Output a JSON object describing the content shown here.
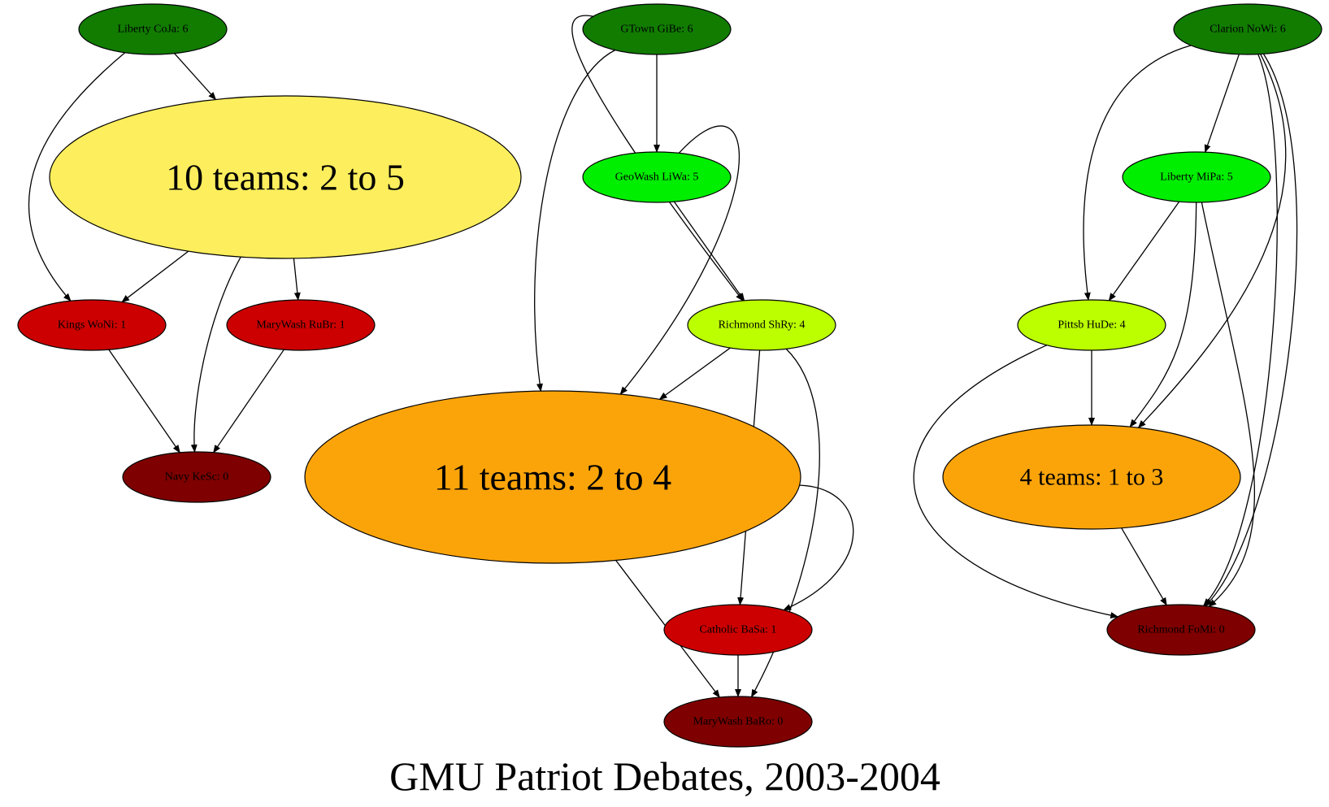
{
  "title": "GMU Patriot Debates, 2003-2004",
  "colors": {
    "dark_green": "#117c00",
    "bright_green": "#00ee00",
    "lime": "#bbff00",
    "yellow": "#fcee5d",
    "orange": "#fba40a",
    "red": "#cc0000",
    "dark_red": "#7e0000"
  },
  "nodes": {
    "liberty_coja": {
      "label": "Liberty CoJa: 6",
      "color": "dark_green"
    },
    "gtown_gibe": {
      "label": "GTown GiBe: 6",
      "color": "dark_green"
    },
    "clarion_nowi": {
      "label": "Clarion NoWi: 6",
      "color": "dark_green"
    },
    "geowash_liwa": {
      "label": "GeoWash LiWa: 5",
      "color": "bright_green"
    },
    "liberty_mipa": {
      "label": "Liberty MiPa: 5",
      "color": "bright_green"
    },
    "group_10": {
      "label": "10 teams: 2 to 5",
      "color": "yellow"
    },
    "kings_woni": {
      "label": "Kings WoNi: 1",
      "color": "red"
    },
    "marywash_rubr": {
      "label": "MaryWash RuBr: 1",
      "color": "red"
    },
    "richmond_shry": {
      "label": "Richmond ShRy: 4",
      "color": "lime"
    },
    "pittsb_hude": {
      "label": "Pittsb HuDe: 4",
      "color": "lime"
    },
    "navy_kesc": {
      "label": "Navy KeSc: 0",
      "color": "dark_red"
    },
    "group_11": {
      "label": "11 teams: 2 to 4",
      "color": "orange"
    },
    "group_4": {
      "label": "4 teams: 1 to 3",
      "color": "orange"
    },
    "catholic_basa": {
      "label": "Catholic BaSa: 1",
      "color": "red"
    },
    "richmond_fomi": {
      "label": "Richmond FoMi: 0",
      "color": "dark_red"
    },
    "marywash_baro": {
      "label": "MaryWash BaRo: 0",
      "color": "dark_red"
    }
  },
  "edges": [
    [
      "liberty_coja",
      "group_10"
    ],
    [
      "liberty_coja",
      "kings_woni"
    ],
    [
      "group_10",
      "kings_woni"
    ],
    [
      "group_10",
      "marywash_rubr"
    ],
    [
      "group_10",
      "navy_kesc"
    ],
    [
      "kings_woni",
      "navy_kesc"
    ],
    [
      "marywash_rubr",
      "navy_kesc"
    ],
    [
      "gtown_gibe",
      "geowash_liwa"
    ],
    [
      "gtown_gibe",
      "group_11"
    ],
    [
      "gtown_gibe",
      "richmond_shry"
    ],
    [
      "geowash_liwa",
      "group_11"
    ],
    [
      "geowash_liwa",
      "richmond_shry"
    ],
    [
      "richmond_shry",
      "group_11"
    ],
    [
      "richmond_shry",
      "catholic_basa"
    ],
    [
      "richmond_shry",
      "marywash_baro"
    ],
    [
      "group_11",
      "catholic_basa"
    ],
    [
      "group_11",
      "marywash_baro"
    ],
    [
      "catholic_basa",
      "marywash_baro"
    ],
    [
      "clarion_nowi",
      "liberty_mipa"
    ],
    [
      "clarion_nowi",
      "pittsb_hude"
    ],
    [
      "clarion_nowi",
      "group_4"
    ],
    [
      "clarion_nowi",
      "richmond_fomi"
    ],
    [
      "clarion_nowi",
      "richmond_fomi"
    ],
    [
      "liberty_mipa",
      "pittsb_hude"
    ],
    [
      "liberty_mipa",
      "group_4"
    ],
    [
      "liberty_mipa",
      "richmond_fomi"
    ],
    [
      "pittsb_hude",
      "group_4"
    ],
    [
      "pittsb_hude",
      "richmond_fomi"
    ],
    [
      "group_4",
      "richmond_fomi"
    ]
  ]
}
